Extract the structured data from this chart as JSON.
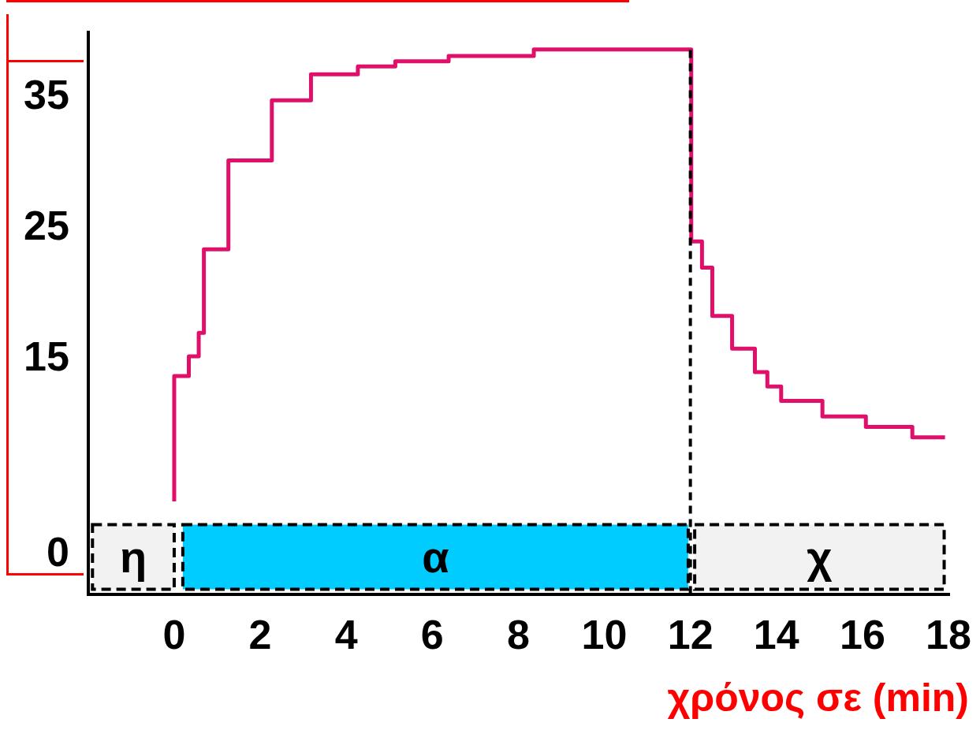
{
  "chart_data": {
    "type": "step",
    "xlabel": "χρόνος σε (min)",
    "x": [
      0,
      0,
      0.34,
      0.57,
      0.69,
      1.26,
      2.27,
      3.18,
      4.27,
      5.14,
      6.38,
      8.36,
      12.02,
      12.27,
      12.51,
      12.97,
      13.5,
      13.79,
      14.11,
      15.07,
      16.08,
      17.16,
      17.92
    ],
    "series": [
      {
        "color": "#e0106a",
        "values": [
          4.1,
          13.7,
          15.2,
          17.0,
          23.4,
          30.2,
          34.8,
          36.8,
          37.4,
          37.8,
          38.2,
          38.7,
          24.0,
          22.0,
          18.3,
          15.8,
          14.0,
          12.9,
          11.8,
          10.6,
          9.8,
          9.0,
          9.0
        ]
      }
    ],
    "xlim": [
      -2,
      18
    ],
    "xticks": [
      0,
      2,
      4,
      6,
      8,
      10,
      12,
      14,
      16,
      18
    ],
    "ylim": [
      -3,
      40
    ],
    "yticks": [
      0,
      15,
      25,
      35
    ],
    "grid": false,
    "legend": false,
    "ref_lines": [
      {
        "axis": "x",
        "value": 12,
        "color": "#000000",
        "line_style": "dashed"
      }
    ],
    "bands": [
      {
        "axis": "x",
        "from": -1.9,
        "to": 0,
        "label": "η",
        "color": "#f2f2f2"
      },
      {
        "axis": "x",
        "from": 0.2,
        "to": 11.95,
        "label": "α",
        "color": "#00ccff"
      },
      {
        "axis": "x",
        "from": 12.1,
        "to": 17.9,
        "label": "χ",
        "color": "#f2f2f2"
      }
    ]
  }
}
